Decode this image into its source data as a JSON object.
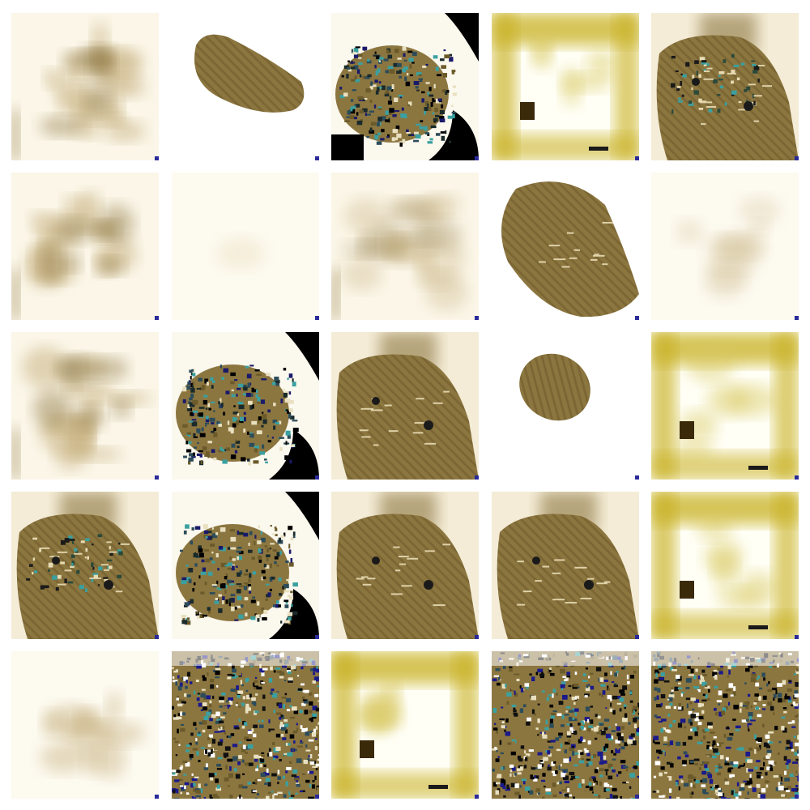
{
  "grid": {
    "rows": 5,
    "cols": 5,
    "tiles": [
      {
        "kind": "soft-blob",
        "variant": "a"
      },
      {
        "kind": "hatched-ellipse",
        "variant": "diag"
      },
      {
        "kind": "noisy-dark",
        "variant": "left"
      },
      {
        "kind": "yellow-frame",
        "variant": "a"
      },
      {
        "kind": "hatched-face",
        "variant": "a"
      },
      {
        "kind": "soft-blob",
        "variant": "a"
      },
      {
        "kind": "faint",
        "variant": "blank"
      },
      {
        "kind": "soft-blob",
        "variant": "light"
      },
      {
        "kind": "hatched-ellipse",
        "variant": "big"
      },
      {
        "kind": "faint",
        "variant": "light"
      },
      {
        "kind": "soft-blob",
        "variant": "a"
      },
      {
        "kind": "noisy-dark",
        "variant": "mid"
      },
      {
        "kind": "hatched-face",
        "variant": "b"
      },
      {
        "kind": "hatched-ellipse",
        "variant": "small"
      },
      {
        "kind": "yellow-frame",
        "variant": "b"
      },
      {
        "kind": "hatched-face",
        "variant": "c"
      },
      {
        "kind": "noisy-dark",
        "variant": "mid"
      },
      {
        "kind": "hatched-face",
        "variant": "d"
      },
      {
        "kind": "hatched-face",
        "variant": "e"
      },
      {
        "kind": "yellow-frame",
        "variant": "c"
      },
      {
        "kind": "faint",
        "variant": "blob"
      },
      {
        "kind": "noisy-full",
        "variant": "a"
      },
      {
        "kind": "yellow-frame",
        "variant": "d"
      },
      {
        "kind": "noisy-full",
        "variant": "b"
      },
      {
        "kind": "noisy-full",
        "variant": "c"
      }
    ]
  },
  "colors": {
    "cream": "#fbf6e8",
    "tan": "#8c7640",
    "tan_dark": "#6e5a2a",
    "tan_light": "#c9b484",
    "olive_yellow": "#c8b020",
    "black": "#000000",
    "teal": "#3aa0a0",
    "blue": "#1a1a8a"
  }
}
